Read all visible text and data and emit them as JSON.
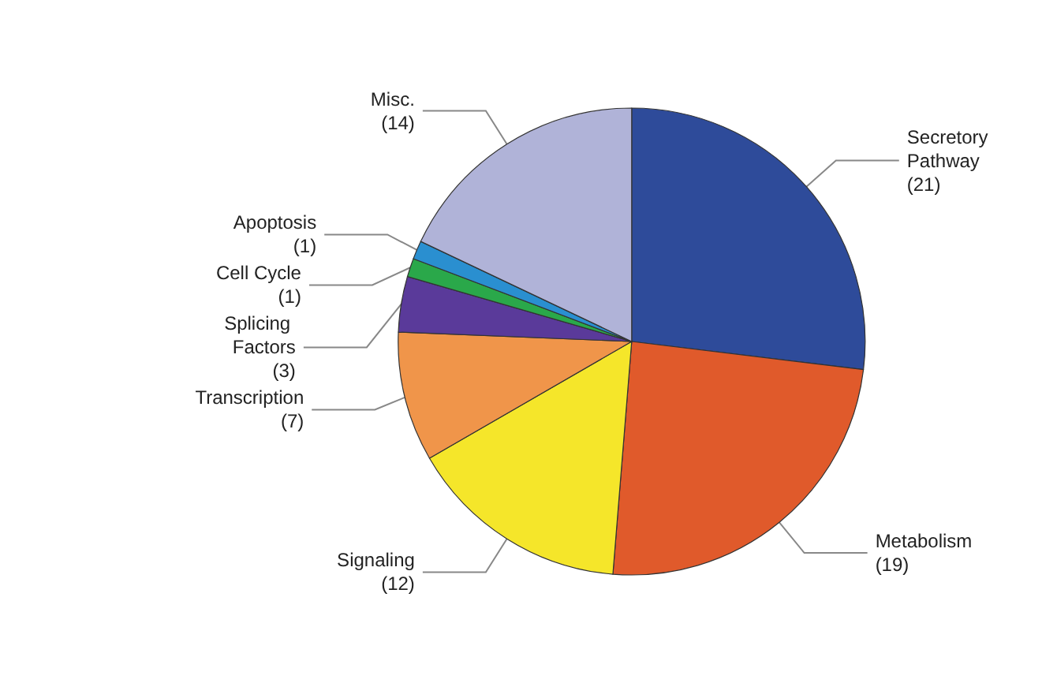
{
  "chart_data": {
    "type": "pie",
    "categories": [
      "Secretory Pathway",
      "Metabolism",
      "Signaling",
      "Transcription",
      "Splicing Factors",
      "Cell Cycle",
      "Apoptosis",
      "Misc."
    ],
    "values": [
      21,
      19,
      12,
      7,
      3,
      1,
      1,
      14
    ],
    "colors": [
      "#2e4b9a",
      "#e05a2b",
      "#f5e62a",
      "#f0954a",
      "#5a3a9a",
      "#2aa84a",
      "#2a8fd0",
      "#b0b3d8"
    ],
    "value_labels": [
      "(21)",
      "(19)",
      "(12)",
      "(7)",
      "(3)",
      "(1)",
      "(1)",
      "(14)"
    ],
    "legend": false
  }
}
